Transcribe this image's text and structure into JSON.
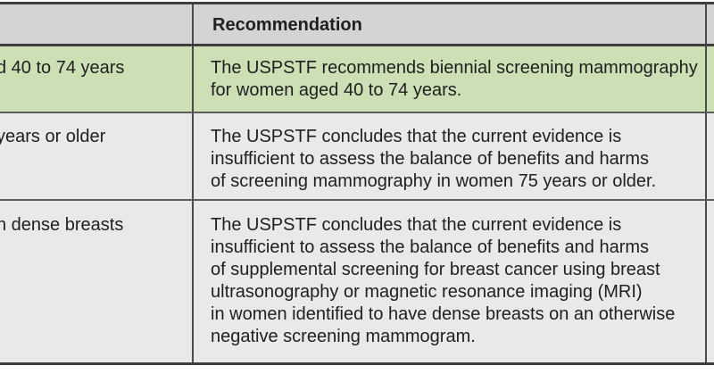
{
  "table": {
    "header": {
      "population": "",
      "recommendation": "Recommendation"
    },
    "rows": [
      {
        "population_visible": "d 40 to 74 years",
        "recommendation": "The USPSTF recommends biennial screening mammography\nfor women aged 40 to 74 years.",
        "highlight": true
      },
      {
        "population_visible": "years or older",
        "recommendation": "The USPSTF concludes that the current evidence is\ninsufficient to assess the balance of benefits and harms\nof screening mammography in women 75 years or older.",
        "highlight": false
      },
      {
        "population_visible": "n dense breasts",
        "recommendation": "The USPSTF concludes that the current evidence is\ninsufficient to assess the balance of benefits and harms\nof supplemental screening for breast cancer using breast\nultrasonography or magnetic resonance imaging (MRI)\nin women identified to have dense breasts on an otherwise\nnegative screening mammogram.",
        "highlight": false
      }
    ]
  },
  "colors": {
    "header_bg": "#d4d4d6",
    "highlight_bg": "#cddfb5",
    "row_bg": "#e9e9e8",
    "border_strong": "#3e3e3e",
    "border_light": "#5c5c5c",
    "border_mid": "#4a4a4a",
    "text": "#1f1f1f"
  }
}
